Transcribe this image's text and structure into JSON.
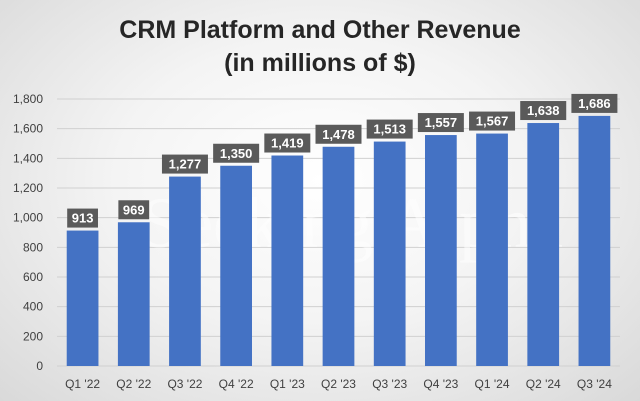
{
  "chart_data": {
    "type": "bar",
    "title_lines": [
      "CRM Platform and Other Revenue",
      "(in millions of $)"
    ],
    "categories": [
      "Q1 '22",
      "Q2 '22",
      "Q3 '22",
      "Q4 '22",
      "Q1 '23",
      "Q2 '23",
      "Q3 '23",
      "Q4 '23",
      "Q1 '24",
      "Q2 '24",
      "Q3 '24"
    ],
    "values": [
      913,
      969,
      1277,
      1350,
      1419,
      1478,
      1513,
      1557,
      1567,
      1638,
      1686
    ],
    "data_labels": [
      "913",
      "969",
      "1,277",
      "1,350",
      "1,419",
      "1,478",
      "1,513",
      "1,557",
      "1,567",
      "1,638",
      "1,686"
    ],
    "y_ticks": [
      0,
      200,
      400,
      600,
      800,
      1000,
      1200,
      1400,
      1600,
      1800
    ],
    "y_tick_labels": [
      "0",
      "200",
      "400",
      "600",
      "800",
      "1,000",
      "1,200",
      "1,400",
      "1,600",
      "1,800"
    ],
    "ylim": [
      0,
      1800
    ],
    "xlabel": "",
    "ylabel": "",
    "grid": true,
    "legend": "none",
    "bar_color": "#4472c4",
    "label_bg_color": "#5a5a5a",
    "watermark": "Seeking Alpha"
  }
}
